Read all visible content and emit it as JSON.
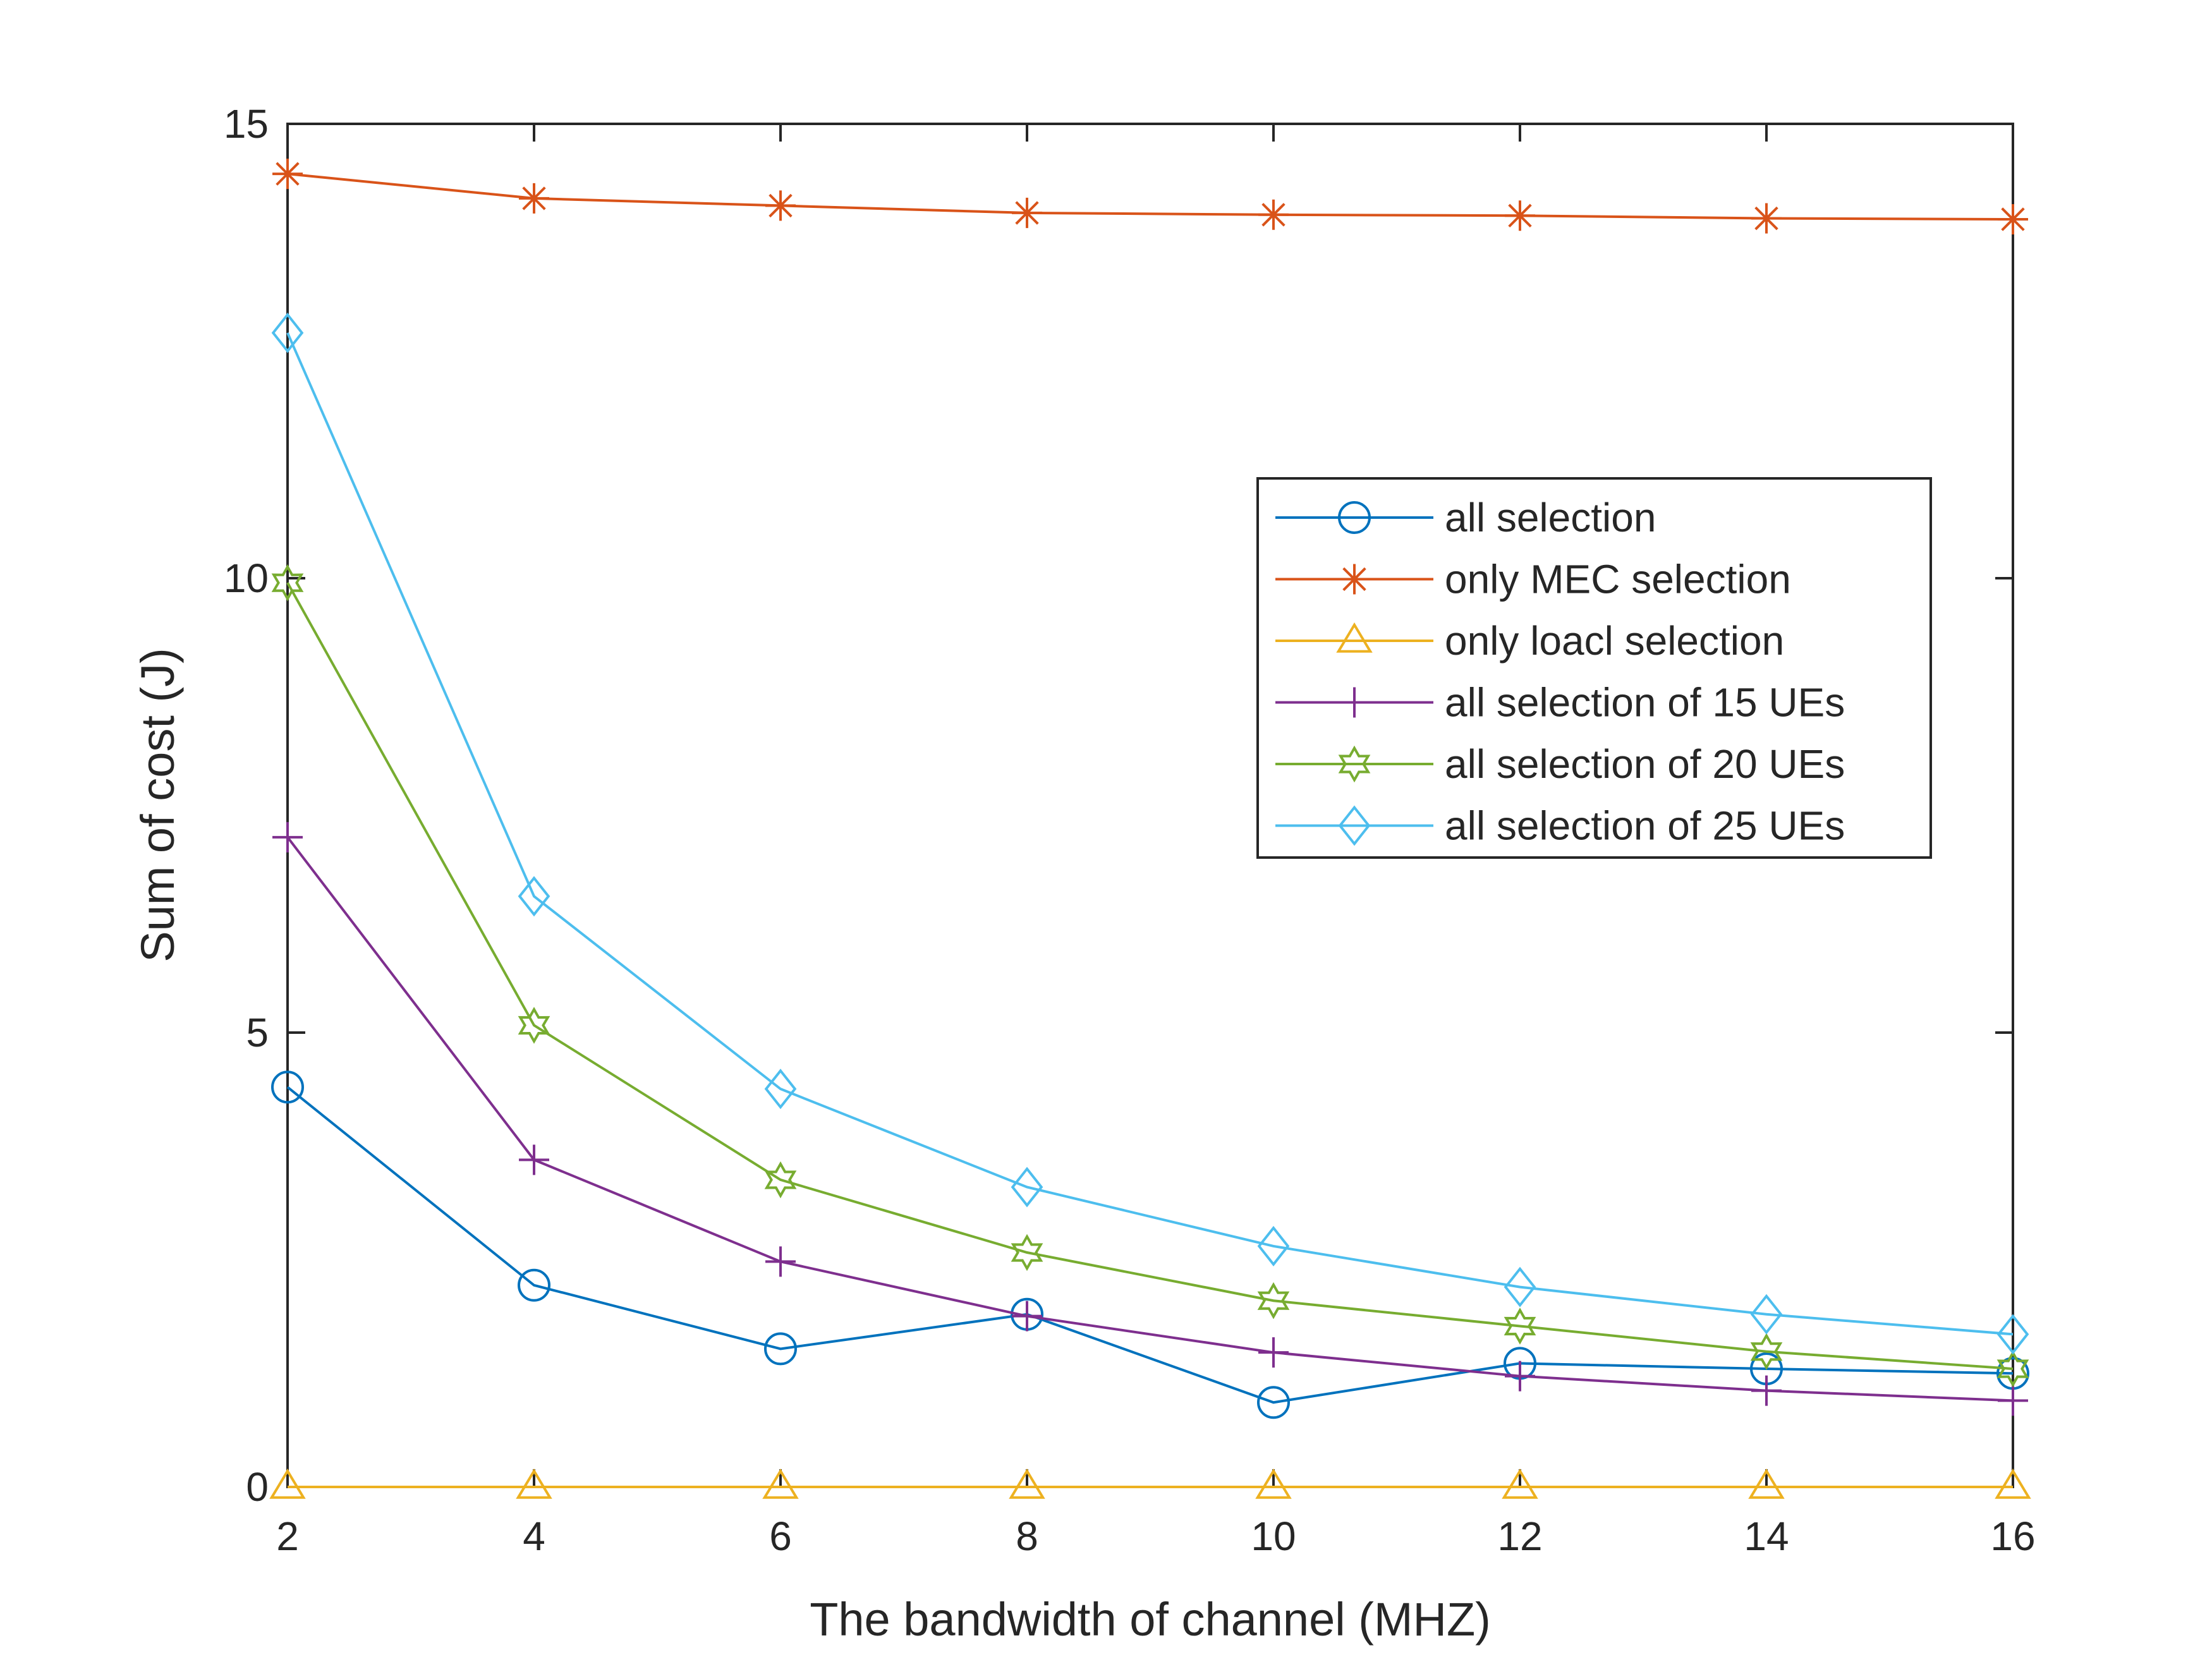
{
  "chart_data": {
    "type": "line",
    "title": "",
    "xlabel": "The bandwidth of channel (MHZ)",
    "ylabel": "Sum of cost  (J)",
    "xlim": [
      2,
      16
    ],
    "ylim": [
      0,
      15
    ],
    "x_ticks": [
      2,
      4,
      6,
      8,
      10,
      12,
      14,
      16
    ],
    "y_ticks": [
      0,
      5,
      10,
      15
    ],
    "grid": false,
    "legend_position": "upper-right-center",
    "x": [
      2,
      4,
      6,
      8,
      10,
      12,
      14,
      16
    ],
    "series": [
      {
        "name": "all selection",
        "color": "#0072BD",
        "marker": "circle",
        "values": [
          4.4,
          2.22,
          1.52,
          1.9,
          0.93,
          1.36,
          1.3,
          1.25
        ]
      },
      {
        "name": "only MEC selection",
        "color": "#D95319",
        "marker": "asterisk",
        "values": [
          14.45,
          14.18,
          14.1,
          14.02,
          14.0,
          13.99,
          13.96,
          13.95
        ]
      },
      {
        "name": "only loacl selection",
        "color": "#EDB120",
        "marker": "triangle",
        "values": [
          0,
          0,
          0,
          0,
          0,
          0,
          0,
          0
        ]
      },
      {
        "name": "all selection of 15 UEs",
        "color": "#7E2F8E",
        "marker": "plus",
        "values": [
          7.15,
          3.6,
          2.48,
          1.88,
          1.48,
          1.22,
          1.06,
          0.95
        ]
      },
      {
        "name": "all selection of 20 UEs",
        "color": "#77AC30",
        "marker": "hexagram",
        "values": [
          9.95,
          5.08,
          3.38,
          2.58,
          2.05,
          1.77,
          1.49,
          1.3
        ]
      },
      {
        "name": "all selection of 25 UEs",
        "color": "#4DBEEE",
        "marker": "diamond",
        "values": [
          12.7,
          6.5,
          4.38,
          3.3,
          2.65,
          2.2,
          1.9,
          1.68
        ]
      }
    ]
  }
}
